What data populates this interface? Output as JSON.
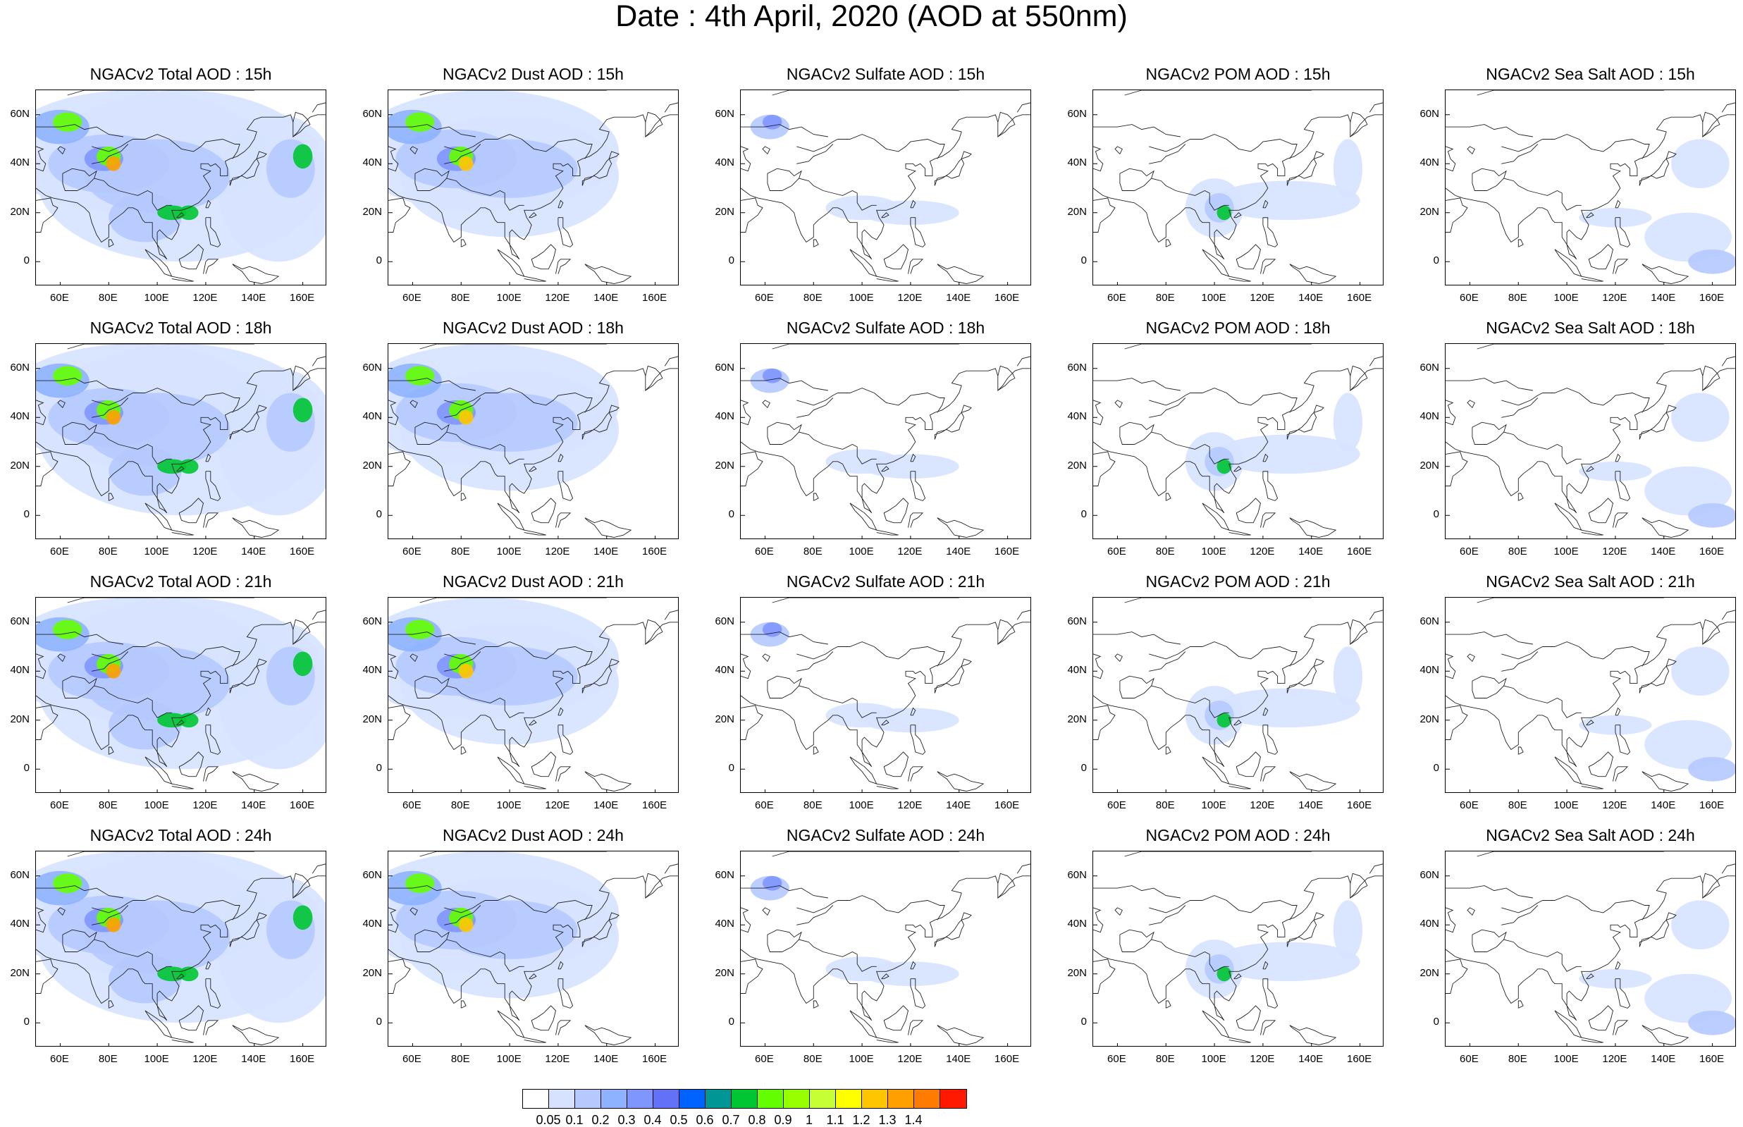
{
  "title": "Date : 4th April, 2020 (AOD at 550nm)",
  "panels": [
    [
      "NGACv2 Total AOD : 15h",
      "NGACv2 Dust AOD : 15h",
      "NGACv2 Sulfate AOD : 15h",
      "NGACv2 POM AOD : 15h",
      "NGACv2 Sea Salt AOD : 15h"
    ],
    [
      "NGACv2 Total AOD : 18h",
      "NGACv2 Dust AOD : 18h",
      "NGACv2 Sulfate AOD : 18h",
      "NGACv2 POM AOD : 18h",
      "NGACv2 Sea Salt AOD : 18h"
    ],
    [
      "NGACv2 Total AOD : 21h",
      "NGACv2 Dust AOD : 21h",
      "NGACv2 Sulfate AOD : 21h",
      "NGACv2 POM AOD : 21h",
      "NGACv2 Sea Salt AOD : 21h"
    ],
    [
      "NGACv2 Total AOD : 24h",
      "NGACv2 Dust AOD : 24h",
      "NGACv2 Sulfate AOD : 24h",
      "NGACv2 POM AOD : 24h",
      "NGACv2 Sea Salt  AOD : 24h"
    ]
  ],
  "lat_labels": [
    "60N",
    "40N",
    "20N",
    "0"
  ],
  "lon_labels": [
    "60E",
    "80E",
    "100E",
    "120E",
    "140E",
    "160E"
  ],
  "colorbar": {
    "labels": [
      "0.05",
      "0.1",
      "0.2",
      "0.3",
      "0.4",
      "0.5",
      "0.6",
      "0.7",
      "0.8",
      "0.9",
      "1",
      "1.1",
      "1.2",
      "1.3",
      "1.4"
    ],
    "colors": [
      "#ffffff",
      "#d6e2ff",
      "#b5c9ff",
      "#8eb2ff",
      "#7f96ff",
      "#6370f8",
      "#0063ff",
      "#009696",
      "#00c633",
      "#63ff00",
      "#96ff00",
      "#c6ff33",
      "#ffff00",
      "#ffc600",
      "#ffa000",
      "#ff7c00",
      "#ff1900"
    ]
  }
}
